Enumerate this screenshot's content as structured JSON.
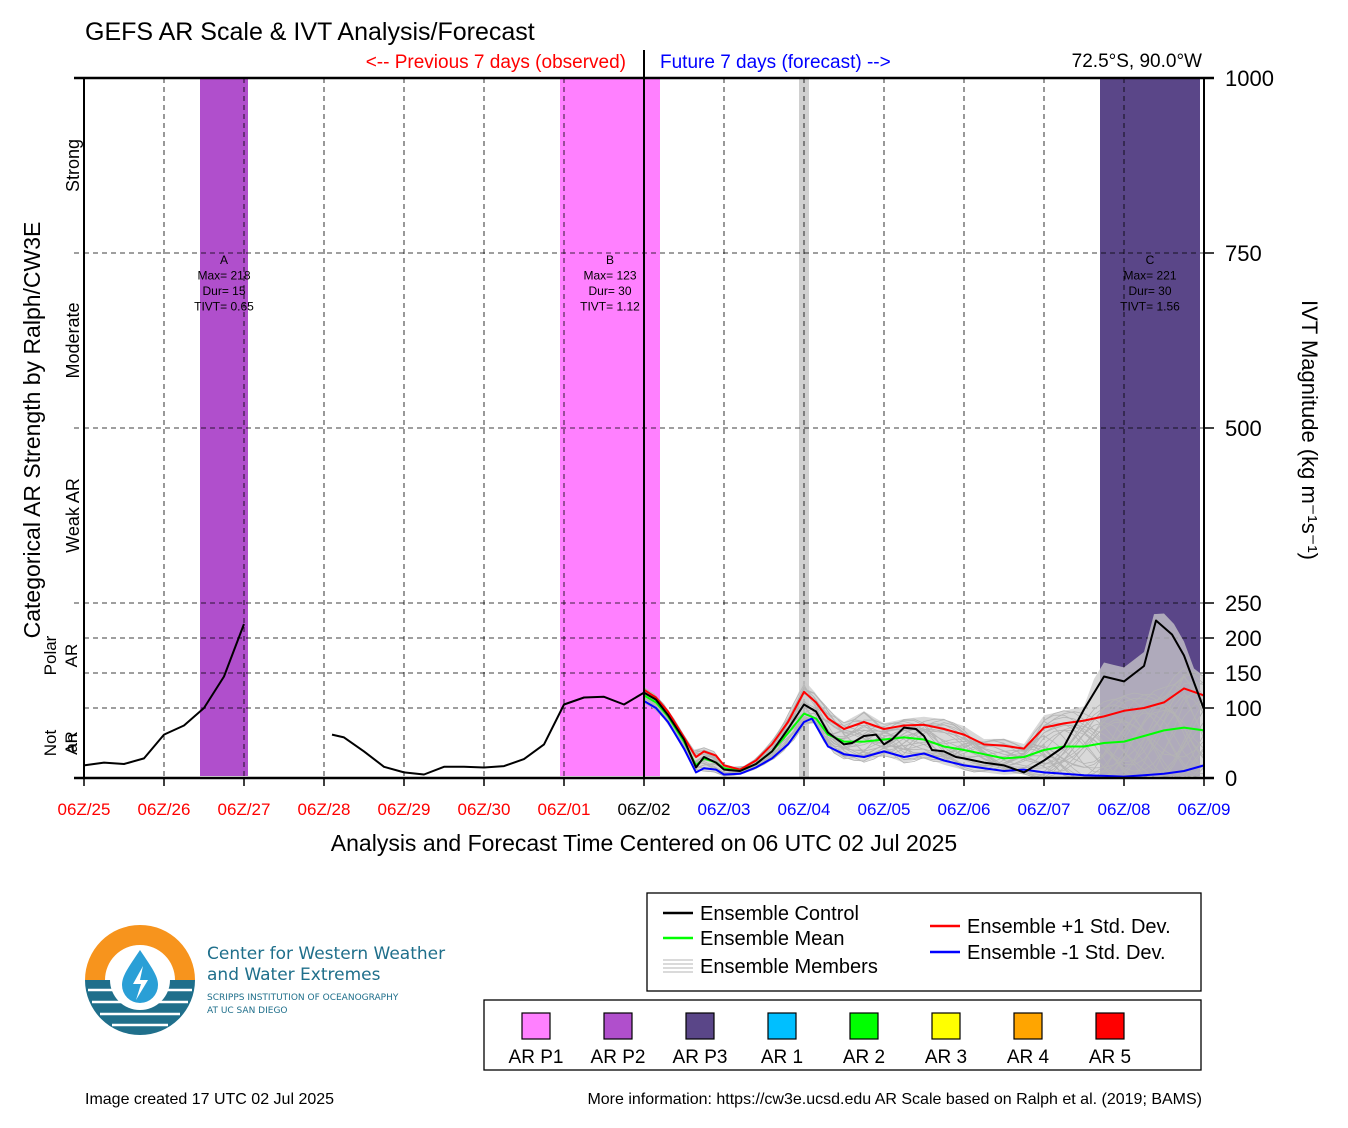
{
  "title": "GEFS AR Scale & IVT Analysis/Forecast",
  "previous_label": "<-- Previous 7 days (observed)",
  "future_label": "Future 7 days (forecast) -->",
  "location": "72.5°S, 90.0°W",
  "left_axis_title": "Categorical AR Strength by Ralph/CW3E",
  "right_axis_title": "IVT Magnitude (kg m⁻¹s⁻¹)",
  "xlabel": "Analysis and Forecast Time Centered on 06 UTC 02 Jul 2025",
  "footer_left": "Image created 17 UTC 02 Jul 2025",
  "footer_right": "More information: https://cw3e.ucsd.edu AR Scale based on Ralph et al. (2019; BAMS)",
  "logo": {
    "line1": "Center for Western Weather",
    "line2": "and Water Extremes",
    "line3": "SCRIPPS INSTITUTION OF OCEANOGRAPHY",
    "line4": "AT UC SAN DIEGO"
  },
  "colors": {
    "observed": "#ff0000",
    "forecast": "#0000ff",
    "ar_p1": "#ff80ff",
    "ar_p2": "#b04fcc",
    "ar_p3": "#5a4688",
    "ar_1": "#00bfff",
    "ar_2": "#00ff00",
    "ar_3": "#ffff00",
    "ar_4": "#ffa500",
    "ar_5": "#ff0000"
  },
  "chart_data": {
    "type": "line",
    "xlabel": "Analysis and Forecast Time Centered on 06 UTC 02 Jul 2025",
    "ylabel": "IVT Magnitude (kg m⁻¹s⁻¹)",
    "x_range_days": [
      -7,
      7
    ],
    "ylim": [
      0,
      1000
    ],
    "x_tick_labels": [
      "06Z/25",
      "06Z/26",
      "06Z/27",
      "06Z/28",
      "06Z/29",
      "06Z/30",
      "06Z/01",
      "06Z/02",
      "06Z/03",
      "06Z/04",
      "06Z/05",
      "06Z/06",
      "06Z/07",
      "06Z/08",
      "06Z/09"
    ],
    "y_ticks": [
      0,
      100,
      150,
      200,
      250,
      500,
      750,
      1000
    ],
    "categories": [
      {
        "label": "Not an AR",
        "range": [
          0,
          100
        ]
      },
      {
        "label": "Polar AR",
        "range": [
          100,
          250
        ]
      },
      {
        "label": "Weak AR",
        "range": [
          250,
          500
        ]
      },
      {
        "label": "Moderate",
        "range": [
          500,
          750
        ]
      },
      {
        "label": "Strong",
        "range": [
          750,
          1000
        ]
      }
    ],
    "grid": true,
    "ar_events": [
      {
        "id": "A",
        "class": "AR P2",
        "start_day": -5.55,
        "end_day": -4.95,
        "lines": [
          "A",
          "Max= 218",
          "Dur= 15",
          "TIVT= 0.65"
        ]
      },
      {
        "id": "B",
        "class": "AR P1",
        "start_day": -1.05,
        "end_day": 0.2,
        "lines": [
          "B",
          "Max= 123",
          "Dur= 30",
          "TIVT= 1.12"
        ]
      },
      {
        "id": "C",
        "class": "AR P3",
        "start_day": 5.7,
        "end_day": 6.95,
        "lines": [
          "C",
          "Max= 221",
          "Dur= 30",
          "TIVT= 1.56"
        ]
      }
    ],
    "gray_marker_day": 2.0,
    "series": [
      {
        "name": "Ensemble Control",
        "color": "#000000",
        "segments": [
          [
            [
              -7,
              18
            ],
            [
              -6.75,
              22
            ],
            [
              -6.5,
              20
            ],
            [
              -6.25,
              28
            ],
            [
              -6,
              62
            ],
            [
              -5.75,
              75
            ],
            [
              -5.5,
              100
            ],
            [
              -5.25,
              145
            ],
            [
              -5,
              220
            ]
          ],
          [
            [
              -3.9,
              62
            ],
            [
              -3.75,
              58
            ],
            [
              -3.5,
              38
            ],
            [
              -3.25,
              16
            ],
            [
              -3,
              8
            ],
            [
              -2.75,
              5
            ],
            [
              -2.5,
              16
            ],
            [
              -2.25,
              16
            ],
            [
              -2,
              15
            ],
            [
              -1.75,
              17
            ],
            [
              -1.5,
              27
            ],
            [
              -1.25,
              48
            ],
            [
              -1,
              105
            ],
            [
              -0.75,
              115
            ],
            [
              -0.5,
              116
            ],
            [
              -0.25,
              105
            ],
            [
              0,
              122
            ],
            [
              0.15,
              112
            ],
            [
              0.3,
              90
            ],
            [
              0.5,
              55
            ],
            [
              0.65,
              15
            ],
            [
              0.75,
              30
            ],
            [
              0.9,
              22
            ],
            [
              1.0,
              12
            ],
            [
              1.2,
              10
            ],
            [
              1.4,
              20
            ],
            [
              1.6,
              38
            ],
            [
              1.8,
              70
            ],
            [
              2.0,
              105
            ],
            [
              2.15,
              95
            ],
            [
              2.3,
              65
            ],
            [
              2.5,
              48
            ],
            [
              2.6,
              50
            ],
            [
              2.75,
              60
            ],
            [
              2.9,
              62
            ],
            [
              3.0,
              48
            ],
            [
              3.1,
              55
            ],
            [
              3.25,
              72
            ],
            [
              3.4,
              70
            ],
            [
              3.5,
              60
            ],
            [
              3.6,
              40
            ],
            [
              3.75,
              38
            ],
            [
              3.9,
              30
            ],
            [
              4.0,
              28
            ],
            [
              4.25,
              22
            ],
            [
              4.5,
              18
            ],
            [
              4.75,
              8
            ],
            [
              5.0,
              25
            ],
            [
              5.25,
              45
            ],
            [
              5.5,
              98
            ],
            [
              5.75,
              145
            ],
            [
              6.0,
              138
            ],
            [
              6.25,
              160
            ],
            [
              6.4,
              225
            ],
            [
              6.6,
              205
            ],
            [
              6.75,
              175
            ],
            [
              7.0,
              98
            ]
          ]
        ]
      },
      {
        "name": "Ensemble Mean",
        "color": "#00ff00",
        "segments": [
          [
            [
              0,
              118
            ],
            [
              0.15,
              108
            ],
            [
              0.3,
              88
            ],
            [
              0.5,
              52
            ],
            [
              0.65,
              18
            ],
            [
              0.75,
              28
            ],
            [
              0.9,
              22
            ],
            [
              1.0,
              14
            ],
            [
              1.2,
              10
            ],
            [
              1.4,
              20
            ],
            [
              1.6,
              38
            ],
            [
              1.8,
              64
            ],
            [
              2.0,
              92
            ],
            [
              2.15,
              85
            ],
            [
              2.3,
              62
            ],
            [
              2.5,
              52
            ],
            [
              2.75,
              52
            ],
            [
              3.0,
              55
            ],
            [
              3.25,
              58
            ],
            [
              3.5,
              55
            ],
            [
              3.75,
              45
            ],
            [
              4.0,
              40
            ],
            [
              4.25,
              34
            ],
            [
              4.5,
              28
            ],
            [
              4.75,
              30
            ],
            [
              5.0,
              40
            ],
            [
              5.25,
              45
            ],
            [
              5.5,
              45
            ],
            [
              5.75,
              50
            ],
            [
              6.0,
              52
            ],
            [
              6.25,
              60
            ],
            [
              6.5,
              68
            ],
            [
              6.75,
              72
            ],
            [
              7.0,
              68
            ]
          ]
        ]
      },
      {
        "name": "Ensemble +1 Std. Dev.",
        "color": "#ff0000",
        "segments": [
          [
            [
              0,
              126
            ],
            [
              0.15,
              115
            ],
            [
              0.3,
              95
            ],
            [
              0.5,
              58
            ],
            [
              0.65,
              30
            ],
            [
              0.75,
              38
            ],
            [
              0.9,
              32
            ],
            [
              1.0,
              18
            ],
            [
              1.2,
              12
            ],
            [
              1.4,
              25
            ],
            [
              1.6,
              48
            ],
            [
              1.8,
              80
            ],
            [
              2.0,
              123
            ],
            [
              2.15,
              108
            ],
            [
              2.3,
              85
            ],
            [
              2.5,
              70
            ],
            [
              2.75,
              80
            ],
            [
              3.0,
              70
            ],
            [
              3.25,
              75
            ],
            [
              3.5,
              76
            ],
            [
              3.75,
              70
            ],
            [
              4.0,
              62
            ],
            [
              4.25,
              48
            ],
            [
              4.5,
              46
            ],
            [
              4.75,
              42
            ],
            [
              5.0,
              72
            ],
            [
              5.25,
              78
            ],
            [
              5.5,
              82
            ],
            [
              5.75,
              88
            ],
            [
              6.0,
              96
            ],
            [
              6.25,
              100
            ],
            [
              6.5,
              108
            ],
            [
              6.75,
              128
            ],
            [
              7.0,
              118
            ]
          ]
        ]
      },
      {
        "name": "Ensemble -1 Std. Dev.",
        "color": "#0000ff",
        "segments": [
          [
            [
              0,
              110
            ],
            [
              0.15,
              100
            ],
            [
              0.3,
              80
            ],
            [
              0.5,
              42
            ],
            [
              0.65,
              8
            ],
            [
              0.75,
              14
            ],
            [
              0.9,
              12
            ],
            [
              1.0,
              5
            ],
            [
              1.2,
              6
            ],
            [
              1.4,
              15
            ],
            [
              1.6,
              28
            ],
            [
              1.8,
              48
            ],
            [
              2.0,
              80
            ],
            [
              2.1,
              85
            ],
            [
              2.3,
              45
            ],
            [
              2.5,
              34
            ],
            [
              2.75,
              30
            ],
            [
              3.0,
              38
            ],
            [
              3.25,
              30
            ],
            [
              3.5,
              35
            ],
            [
              3.75,
              25
            ],
            [
              4.0,
              18
            ],
            [
              4.25,
              14
            ],
            [
              4.5,
              10
            ],
            [
              4.75,
              12
            ],
            [
              5.0,
              8
            ],
            [
              5.25,
              6
            ],
            [
              5.5,
              4
            ],
            [
              5.75,
              3
            ],
            [
              6.0,
              2
            ],
            [
              6.25,
              4
            ],
            [
              6.5,
              6
            ],
            [
              6.75,
              10
            ],
            [
              7.0,
              18
            ]
          ]
        ]
      }
    ],
    "members_band": {
      "name": "Ensemble Members",
      "color": "#bbbbbb",
      "count": 30
    },
    "legend": [
      "Ensemble Control",
      "Ensemble Mean",
      "Ensemble Members",
      "Ensemble +1 Std. Dev.",
      "Ensemble -1 Std. Dev."
    ],
    "scale_legend": [
      "AR P1",
      "AR P2",
      "AR P3",
      "AR 1",
      "AR 2",
      "AR 3",
      "AR 4",
      "AR 5"
    ]
  }
}
